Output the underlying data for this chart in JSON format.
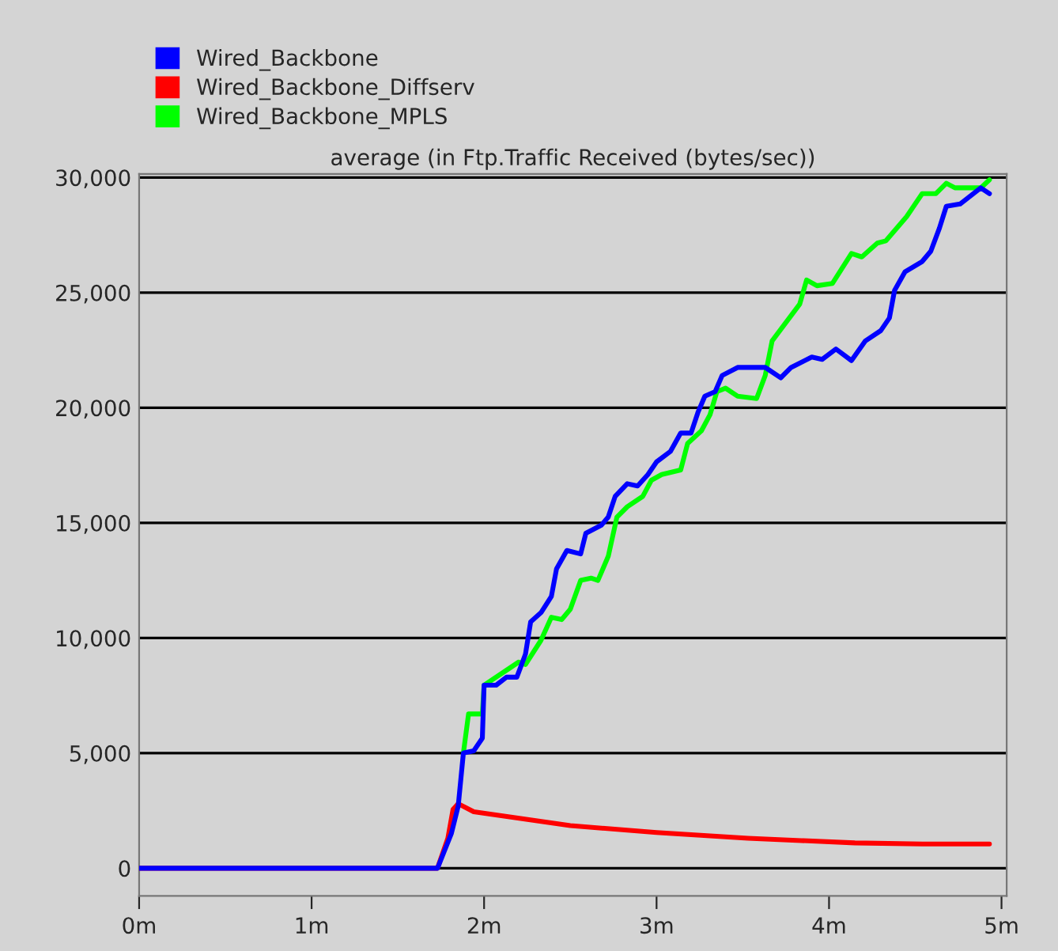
{
  "chart_data": {
    "type": "line",
    "title": "average (in Ftp.Traffic Received (bytes/sec))",
    "xlim": [
      0,
      5.03
    ],
    "ylim": [
      -1200,
      30150
    ],
    "xticks": [
      {
        "value": 0,
        "label": "0m"
      },
      {
        "value": 1,
        "label": "1m"
      },
      {
        "value": 2,
        "label": "2m"
      },
      {
        "value": 3,
        "label": "3m"
      },
      {
        "value": 4,
        "label": "4m"
      },
      {
        "value": 5,
        "label": "5m"
      }
    ],
    "yticks": [
      {
        "value": 0,
        "label": "0"
      },
      {
        "value": 5000,
        "label": "5,000"
      },
      {
        "value": 10000,
        "label": "10,000"
      },
      {
        "value": 15000,
        "label": "15,000"
      },
      {
        "value": 20000,
        "label": "20,000"
      },
      {
        "value": 25000,
        "label": "25,000"
      },
      {
        "value": 30000,
        "label": "30,000"
      }
    ],
    "grid": "y",
    "legend": "top left",
    "marker": "none",
    "line_style": "solid",
    "series": [
      {
        "name": "Wired_Backbone",
        "color": "#0000ff",
        "x": [
          0,
          1.73,
          1.81,
          1.85,
          1.88,
          1.94,
          1.99,
          2.0,
          2.07,
          2.13,
          2.19,
          2.24,
          2.27,
          2.33,
          2.39,
          2.42,
          2.48,
          2.56,
          2.59,
          2.68,
          2.72,
          2.76,
          2.83,
          2.89,
          2.95,
          3.0,
          3.08,
          3.14,
          3.2,
          3.24,
          3.28,
          3.34,
          3.38,
          3.47,
          3.63,
          3.72,
          3.78,
          3.9,
          3.96,
          4.04,
          4.13,
          4.21,
          4.3,
          4.35,
          4.38,
          4.44,
          4.54,
          4.59,
          4.64,
          4.68,
          4.76,
          4.82,
          4.88,
          4.93
        ],
        "values": [
          0,
          0,
          1500,
          2700,
          5000,
          5100,
          5650,
          7950,
          7950,
          8300,
          8300,
          9300,
          10700,
          11100,
          11800,
          13000,
          13800,
          13650,
          14550,
          14900,
          15250,
          16150,
          16700,
          16600,
          17100,
          17650,
          18100,
          18900,
          18900,
          19800,
          20500,
          20700,
          21400,
          21750,
          21750,
          21300,
          21750,
          22200,
          22100,
          22550,
          22050,
          22900,
          23350,
          23900,
          25100,
          25900,
          26350,
          26800,
          27800,
          28750,
          28850,
          29200,
          29550,
          29300
        ]
      },
      {
        "name": "Wired_Backbone_Diffserv",
        "color": "#ff0000",
        "x": [
          0,
          1.73,
          1.79,
          1.82,
          1.85,
          1.94,
          2.5,
          3.0,
          3.53,
          3.84,
          4.15,
          4.54,
          4.93
        ],
        "values": [
          0,
          0,
          1300,
          2550,
          2800,
          2450,
          1850,
          1550,
          1300,
          1200,
          1100,
          1050,
          1050
        ]
      },
      {
        "name": "Wired_Backbone_MPLS",
        "color": "#00ff00",
        "x": [
          1.88,
          1.91,
          1.99,
          2.0,
          2.13,
          2.2,
          2.24,
          2.33,
          2.39,
          2.45,
          2.5,
          2.56,
          2.62,
          2.66,
          2.72,
          2.77,
          2.83,
          2.92,
          2.97,
          3.03,
          3.14,
          3.18,
          3.26,
          3.31,
          3.35,
          3.4,
          3.47,
          3.58,
          3.63,
          3.67,
          3.75,
          3.83,
          3.87,
          3.93,
          4.02,
          4.13,
          4.19,
          4.28,
          4.33,
          4.45,
          4.54,
          4.62,
          4.68,
          4.73,
          4.88,
          4.93
        ],
        "values": [
          5000,
          6700,
          6700,
          7950,
          8600,
          8950,
          8850,
          9900,
          10900,
          10800,
          11250,
          12500,
          12600,
          12500,
          13550,
          15250,
          15700,
          16150,
          16850,
          17100,
          17300,
          18450,
          19000,
          19700,
          20700,
          20850,
          20500,
          20400,
          21400,
          22900,
          23700,
          24500,
          25550,
          25300,
          25400,
          26700,
          26550,
          27150,
          27250,
          28300,
          29300,
          29300,
          29750,
          29550,
          29550,
          29900
        ]
      }
    ]
  }
}
